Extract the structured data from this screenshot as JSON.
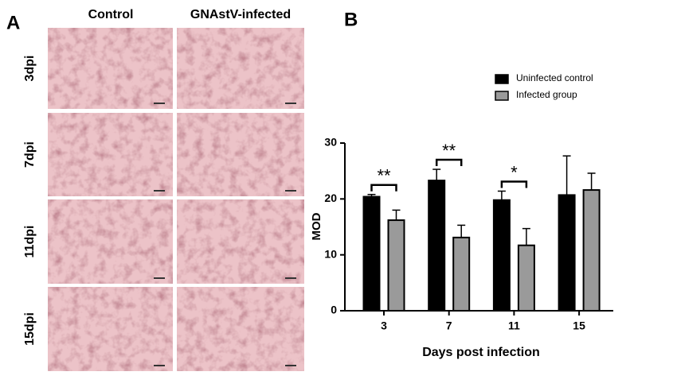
{
  "panel_a": {
    "label": "A",
    "columns": [
      "Control",
      "GNAstV-infected"
    ],
    "rows": [
      "3dpi",
      "7dpi",
      "11dpi",
      "15dpi"
    ]
  },
  "chart_data": {
    "type": "bar",
    "panel_label": "B",
    "xlabel": "Days post infection",
    "ylabel": "MOD",
    "categories": [
      "3",
      "7",
      "11",
      "15"
    ],
    "series": [
      {
        "name": "Uninfected control",
        "color": "#000000",
        "values": [
          20.4,
          23.3,
          19.8,
          20.7
        ],
        "errors": [
          0.4,
          2.0,
          1.6,
          7.0
        ]
      },
      {
        "name": "Infected group",
        "color": "#9a9a9a",
        "values": [
          16.2,
          13.1,
          11.7,
          21.6
        ],
        "errors": [
          1.8,
          2.2,
          3.0,
          3.0
        ]
      }
    ],
    "annotations": [
      "**",
      "**",
      "*",
      null
    ],
    "ylim": [
      0,
      30
    ],
    "yticks": [
      0,
      10,
      20,
      30
    ],
    "legend": "upper right"
  }
}
